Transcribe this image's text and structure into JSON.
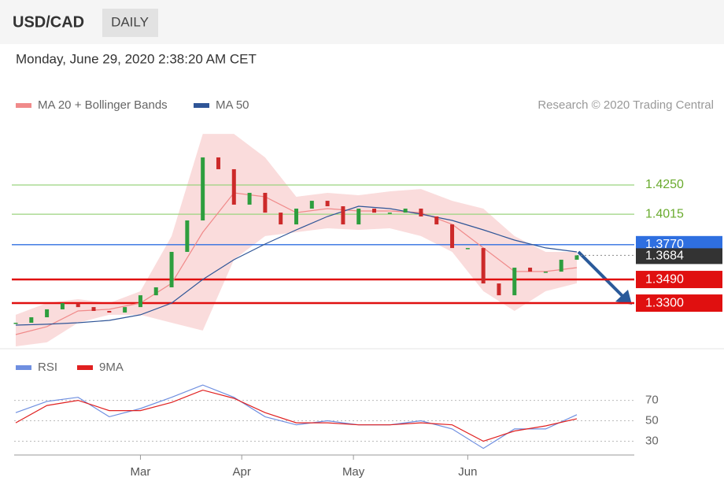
{
  "header": {
    "symbol": "USD/CAD",
    "period": "DAILY",
    "timestamp": "Monday, June 29, 2020 2:38:20 AM CET"
  },
  "chart_data": [
    {
      "type": "price",
      "credit": "Research © 2020 Trading Central",
      "xlim": [
        0,
        108
      ],
      "ylim": [
        1.2952,
        1.4725
      ],
      "x": [
        0,
        3,
        6,
        9,
        12,
        15,
        18,
        21,
        24,
        27,
        30,
        33,
        36,
        39,
        42,
        45,
        48,
        51,
        54,
        57,
        60,
        63,
        66,
        69,
        72,
        75,
        78,
        81,
        84,
        87,
        90,
        93,
        96,
        99,
        102,
        105,
        108
      ],
      "candles": {
        "color_up": "#2e9e3e",
        "color_down": "#cc2a2a",
        "values": [
          1.3142,
          1.3186,
          1.325,
          1.33,
          1.3268,
          1.3237,
          1.3224,
          1.3268,
          1.3363,
          1.3427,
          1.3712,
          1.3965,
          1.4472,
          1.4377,
          1.4092,
          1.4187,
          1.4028,
          1.3933,
          1.406,
          1.4123,
          1.4079,
          1.3933,
          1.406,
          1.4028,
          1.4028,
          1.406,
          1.3997,
          1.3933,
          1.3743,
          1.3743,
          1.3458,
          1.3363,
          1.3585,
          1.3553,
          1.3553,
          1.3649,
          1.3684
        ]
      },
      "series": [
        {
          "name": "MA 20 + Bollinger Bands",
          "color": "#f08a8a",
          "x": [
            0,
            6,
            12,
            18,
            24,
            30,
            36,
            42,
            48,
            54,
            60,
            66,
            72,
            78,
            84,
            90,
            96,
            102,
            108
          ],
          "values": [
            1.3047,
            1.3111,
            1.3237,
            1.325,
            1.33,
            1.3459,
            1.387,
            1.4187,
            1.4155,
            1.4028,
            1.406,
            1.4041,
            1.4041,
            1.4028,
            1.3934,
            1.3744,
            1.3554,
            1.3554,
            1.3585
          ],
          "upper": [
            1.3206,
            1.33,
            1.3332,
            1.33,
            1.3395,
            1.3839,
            1.4661,
            1.4661,
            1.4472,
            1.4155,
            1.4187,
            1.4168,
            1.4199,
            1.4218,
            1.4123,
            1.406,
            1.3839,
            1.3712,
            1.3712
          ],
          "lower": [
            1.2952,
            1.2984,
            1.3142,
            1.3206,
            1.3206,
            1.3142,
            1.3079,
            1.3649,
            1.3839,
            1.387,
            1.3902,
            1.3889,
            1.3902,
            1.3839,
            1.3712,
            1.3396,
            1.3237,
            1.3396,
            1.3459
          ]
        },
        {
          "name": "MA 50",
          "color": "#2f5597",
          "x": [
            0,
            6,
            12,
            18,
            24,
            30,
            36,
            42,
            48,
            54,
            60,
            66,
            72,
            78,
            84,
            90,
            96,
            102,
            108
          ],
          "values": [
            1.3123,
            1.313,
            1.3142,
            1.3161,
            1.3206,
            1.33,
            1.349,
            1.3649,
            1.3775,
            1.3889,
            1.3997,
            1.4079,
            1.406,
            1.4016,
            1.3965,
            1.3889,
            1.3807,
            1.3744,
            1.3712
          ]
        }
      ],
      "levels": [
        {
          "value": 1.425,
          "label": "1.4250",
          "color": "#9bd37f",
          "style": "text"
        },
        {
          "value": 1.4015,
          "label": "1.4015",
          "color": "#9bd37f",
          "style": "text"
        },
        {
          "value": 1.377,
          "label": "1.3770",
          "color": "#2f6fe0",
          "style": "box"
        },
        {
          "value": 1.349,
          "label": "1.3490",
          "color": "#e01010",
          "style": "box"
        },
        {
          "value": 1.33,
          "label": "1.3300",
          "color": "#e01010",
          "style": "box"
        }
      ],
      "last": {
        "value": 1.3684,
        "label": "1.3684",
        "color": "#333333"
      }
    },
    {
      "type": "line",
      "xlim": [
        0,
        108
      ],
      "ylim": [
        15,
        92
      ],
      "yticks": [
        30,
        50,
        70
      ],
      "x": [
        0,
        6,
        12,
        18,
        24,
        30,
        36,
        42,
        48,
        54,
        60,
        66,
        72,
        78,
        84,
        90,
        96,
        102,
        108
      ],
      "series": [
        {
          "name": "RSI",
          "color": "#6f8fe0",
          "values": [
            58,
            69,
            73,
            54,
            62,
            73,
            85,
            73,
            54,
            46,
            50,
            46,
            46,
            50,
            42,
            23,
            42,
            42,
            56
          ]
        },
        {
          "name": "9MA",
          "color": "#e02020",
          "values": [
            48,
            65,
            70,
            60,
            60,
            68,
            80,
            72,
            58,
            48,
            48,
            46,
            46,
            48,
            46,
            30,
            40,
            45,
            52
          ]
        }
      ],
      "xticks": [
        {
          "value": 24,
          "label": "Mar"
        },
        {
          "value": 43.5,
          "label": "Apr"
        },
        {
          "value": 65,
          "label": "May"
        },
        {
          "value": 87,
          "label": "Jun"
        }
      ]
    }
  ]
}
